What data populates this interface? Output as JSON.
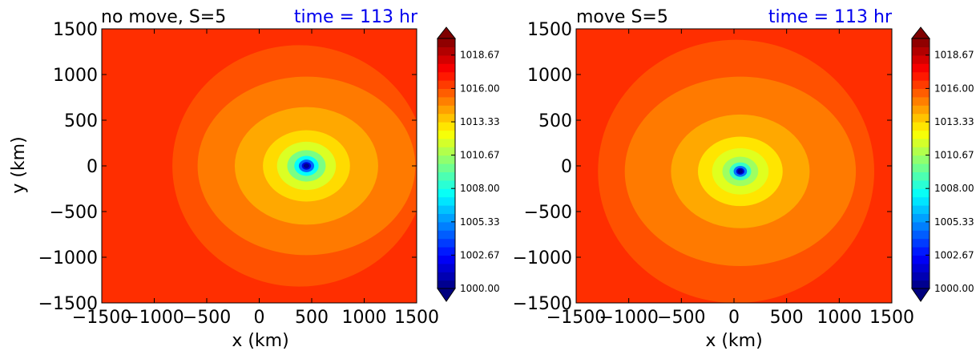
{
  "chart_data": [
    {
      "type": "heatmap",
      "subtype": "filled-contour",
      "title_left": "no move, S=5",
      "title_right": "time = 113 hr",
      "xlabel": "x (km)",
      "ylabel": "y (km)",
      "xlim": [
        -1500,
        1500
      ],
      "ylim": [
        -1500,
        1500
      ],
      "xticks": [
        -1500,
        -1000,
        -500,
        0,
        500,
        1000,
        1500
      ],
      "yticks": [
        -1500,
        -1000,
        -500,
        0,
        500,
        1000,
        1500
      ],
      "xtick_labels": [
        "−1500",
        "−1000",
        "−500",
        "0",
        "500",
        "1000",
        "1500"
      ],
      "ytick_labels": [
        "−1500",
        "−1000",
        "−500",
        "0",
        "500",
        "1000",
        "1500"
      ],
      "center": {
        "x": 450,
        "y": 0
      },
      "colorbar": {
        "min": 1000.0,
        "max": 1020.0,
        "extend": "both",
        "ticks": [
          1000.0,
          1002.67,
          1005.33,
          1008.0,
          1010.67,
          1013.33,
          1016.0,
          1018.67
        ],
        "tick_labels": [
          "1000.00",
          "1002.67",
          "1005.33",
          "1008.00",
          "1010.67",
          "1013.33",
          "1016.00",
          "1018.67"
        ]
      }
    },
    {
      "type": "heatmap",
      "subtype": "filled-contour",
      "title_left": "move S=5",
      "title_right": "time = 113 hr",
      "xlabel": "x (km)",
      "ylabel": "",
      "xlim": [
        -1500,
        1500
      ],
      "ylim": [
        -1500,
        1500
      ],
      "xticks": [
        -1500,
        -1000,
        -500,
        0,
        500,
        1000,
        1500
      ],
      "yticks": [
        -1500,
        -1000,
        -500,
        0,
        500,
        1000,
        1500
      ],
      "xtick_labels": [
        "−1500",
        "−1000",
        "−500",
        "0",
        "500",
        "1000",
        "1500"
      ],
      "ytick_labels": [
        "−1500",
        "−1000",
        "−500",
        "0",
        "500",
        "1000",
        "1500"
      ],
      "center": {
        "x": 60,
        "y": -60
      },
      "colorbar": {
        "min": 1000.0,
        "max": 1020.0,
        "extend": "both",
        "ticks": [
          1000.0,
          1002.67,
          1005.33,
          1008.0,
          1010.67,
          1013.33,
          1016.0,
          1018.67
        ],
        "tick_labels": [
          "1000.00",
          "1002.67",
          "1005.33",
          "1008.00",
          "1010.67",
          "1013.33",
          "1016.00",
          "1018.67"
        ]
      }
    }
  ],
  "colors": {
    "title_time": "#0000ee",
    "jet": [
      "#00007f",
      "#0000ff",
      "#007fff",
      "#00ffff",
      "#7fff7f",
      "#ffff00",
      "#ff7f00",
      "#ff0000",
      "#7f0000"
    ]
  }
}
